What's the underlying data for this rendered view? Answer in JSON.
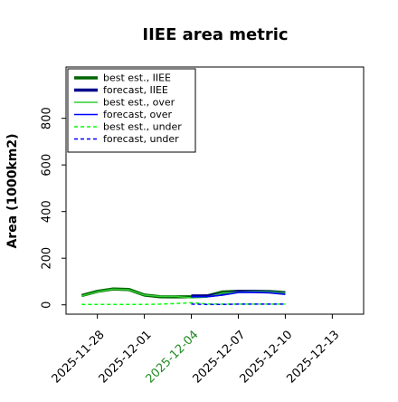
{
  "chart_data": {
    "type": "line",
    "title": "IIEE area metric",
    "xlabel": "",
    "ylabel": "Area (1000km2)",
    "x_ticks": [
      "2025-11-28",
      "2025-12-01",
      "2025-12-04",
      "2025-12-07",
      "2025-12-10",
      "2025-12-13"
    ],
    "highlighted_tick": "2025-12-04",
    "highlight_color": "#228b22",
    "x_range": [
      "2025-11-26",
      "2025-12-15"
    ],
    "y_ticks": [
      0,
      200,
      400,
      600,
      800
    ],
    "ylim": [
      -40,
      1020
    ],
    "grid": false,
    "legend_position": "top-left",
    "series": [
      {
        "name": "best est., IIEE",
        "color": "#006400",
        "style": "solid",
        "weight": "thick",
        "x": [
          "2025-11-27",
          "2025-11-28",
          "2025-11-29",
          "2025-11-30",
          "2025-12-01",
          "2025-12-02",
          "2025-12-03",
          "2025-12-04",
          "2025-12-05",
          "2025-12-06",
          "2025-12-07",
          "2025-12-08",
          "2025-12-09",
          "2025-12-10"
        ],
        "values": [
          40,
          58,
          68,
          66,
          42,
          35,
          34,
          35,
          38,
          55,
          58,
          58,
          57,
          52
        ]
      },
      {
        "name": "forecast, IIEE",
        "color": "#00008b",
        "style": "solid",
        "weight": "thick",
        "x": [
          "2025-12-04",
          "2025-12-05",
          "2025-12-06",
          "2025-12-07",
          "2025-12-08",
          "2025-12-09",
          "2025-12-10"
        ],
        "values": [
          38,
          38,
          46,
          57,
          57,
          55,
          49
        ]
      },
      {
        "name": "best est., over",
        "color": "#32cd32",
        "style": "solid",
        "weight": "thin",
        "x": [
          "2025-11-27",
          "2025-11-28",
          "2025-11-29",
          "2025-11-30",
          "2025-12-01",
          "2025-12-02",
          "2025-12-03",
          "2025-12-04",
          "2025-12-05",
          "2025-12-06",
          "2025-12-07",
          "2025-12-08",
          "2025-12-09",
          "2025-12-10"
        ],
        "values": [
          38,
          56,
          67,
          65,
          42,
          36,
          36,
          30,
          33,
          50,
          54,
          57,
          56,
          50
        ]
      },
      {
        "name": "forecast, over",
        "color": "#0000ff",
        "style": "solid",
        "weight": "thin",
        "x": [
          "2025-12-04",
          "2025-12-05",
          "2025-12-06",
          "2025-12-07",
          "2025-12-08",
          "2025-12-09",
          "2025-12-10"
        ],
        "values": [
          34,
          35,
          42,
          53,
          54,
          52,
          46
        ]
      },
      {
        "name": "best est., under",
        "color": "#00ff00",
        "style": "dashed",
        "weight": "thin",
        "x": [
          "2025-11-27",
          "2025-11-28",
          "2025-11-29",
          "2025-11-30",
          "2025-12-01",
          "2025-12-02",
          "2025-12-03",
          "2025-12-04",
          "2025-12-05",
          "2025-12-06",
          "2025-12-07",
          "2025-12-08",
          "2025-12-09",
          "2025-12-10"
        ],
        "values": [
          2,
          2,
          2,
          2,
          2,
          3,
          6,
          9,
          4,
          3,
          3,
          3,
          3,
          3
        ]
      },
      {
        "name": "forecast, under",
        "color": "#0000ff",
        "style": "dashed",
        "weight": "thin",
        "x": [
          "2025-12-04",
          "2025-12-05",
          "2025-12-06",
          "2025-12-07",
          "2025-12-08",
          "2025-12-09",
          "2025-12-10"
        ],
        "values": [
          3,
          2,
          2,
          3,
          3,
          3,
          3
        ]
      }
    ]
  }
}
